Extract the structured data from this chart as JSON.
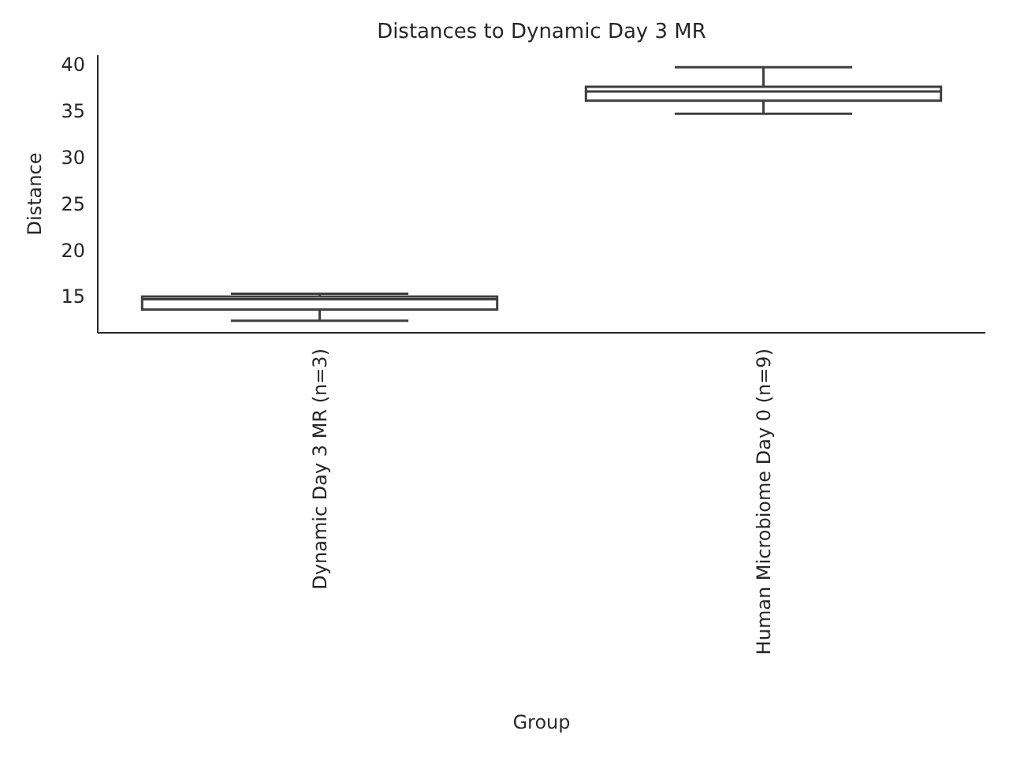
{
  "chart_data": {
    "type": "box",
    "title": "Distances to Dynamic Day 3 MR",
    "xlabel": "Group",
    "ylabel": "Distance",
    "categories": [
      "Dynamic Day 3 MR (n=3)",
      "Human Microbiome Day 0 (n=9)"
    ],
    "boxes": [
      {
        "low": 12.4,
        "q1": 13.6,
        "median": 14.7,
        "q3": 15.0,
        "high": 15.3
      },
      {
        "low": 34.7,
        "q1": 36.1,
        "median": 37.1,
        "q3": 37.6,
        "high": 39.7
      }
    ],
    "color": "#ffffff",
    "ylim": [
      11.1,
      41
    ],
    "yticks": [
      15,
      20,
      25,
      30,
      35,
      40
    ],
    "grid": false
  }
}
